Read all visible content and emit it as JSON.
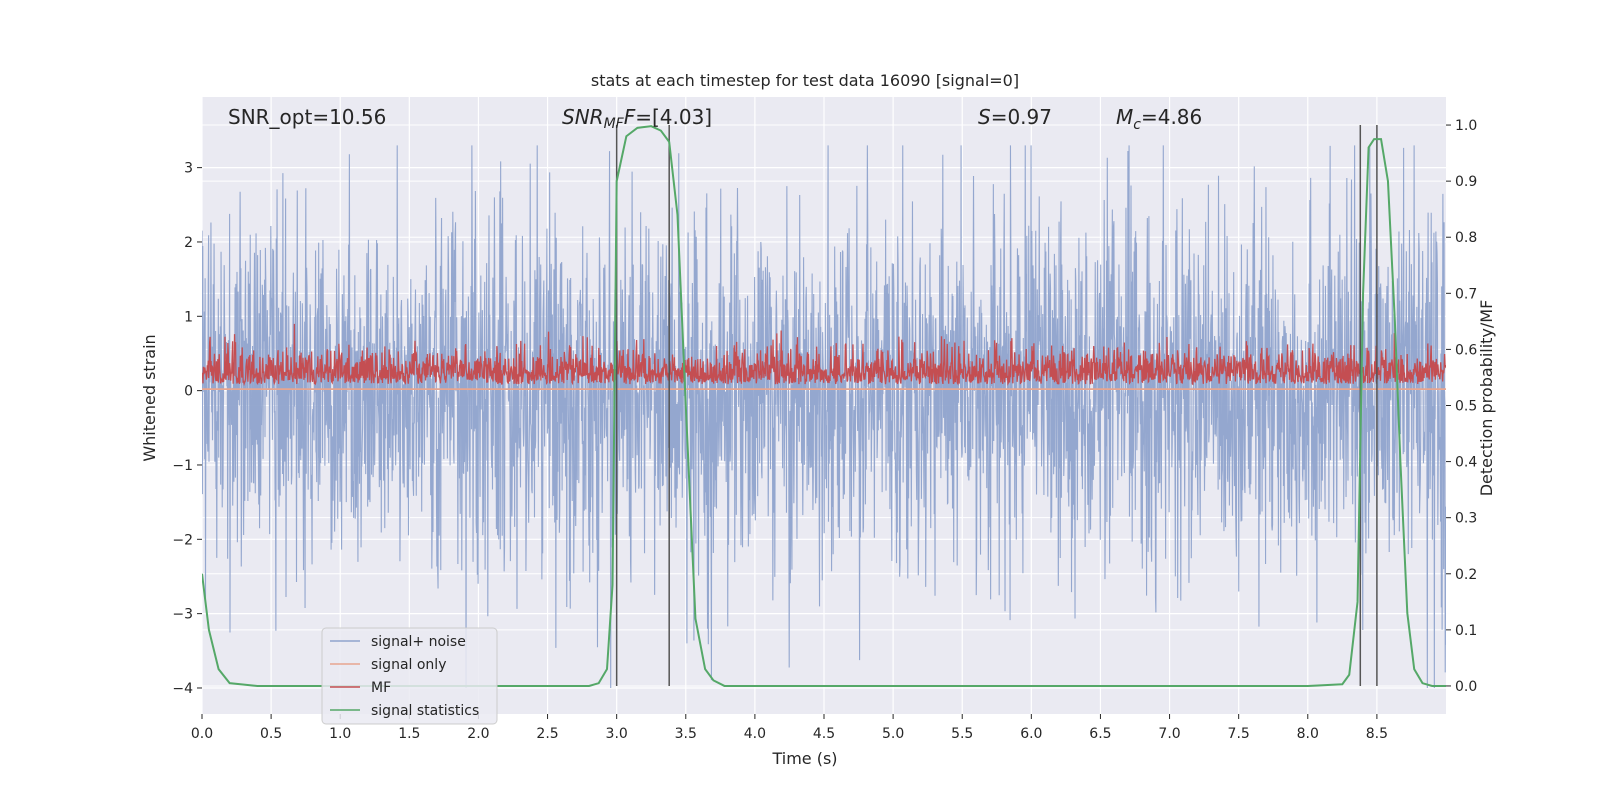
{
  "chart_data": {
    "type": "line",
    "title": "stats at each timestep for test data 16090 [signal=0]",
    "xlabel": "Time (s)",
    "ylabel": "Whitened strain",
    "ylabel_right": "Detection probability/MF",
    "xlim": [
      0.0,
      9.0
    ],
    "ylim": [
      -4.35,
      3.95
    ],
    "ylim_right": [
      -0.05,
      1.05
    ],
    "x_ticks": [
      0.0,
      0.5,
      1.0,
      1.5,
      2.0,
      2.5,
      3.0,
      3.5,
      4.0,
      4.5,
      5.0,
      5.5,
      6.0,
      6.5,
      7.0,
      7.5,
      8.0,
      8.5
    ],
    "x_tick_labels": [
      "0.0",
      "0.5",
      "1.0",
      "1.5",
      "2.0",
      "2.5",
      "3.0",
      "3.5",
      "4.0",
      "4.5",
      "5.0",
      "5.5",
      "6.0",
      "6.5",
      "7.0",
      "7.5",
      "8.0",
      "8.5"
    ],
    "y_ticks": [
      -4,
      -3,
      -2,
      -1,
      0,
      1,
      2,
      3
    ],
    "y_tick_labels": [
      "−4",
      "−3",
      "−2",
      "−1",
      "0",
      "1",
      "2",
      "3"
    ],
    "y_ticks_right": [
      0.0,
      0.1,
      0.2,
      0.3,
      0.4,
      0.5,
      0.6,
      0.7,
      0.8,
      0.9,
      1.0
    ],
    "y_tick_labels_right": [
      "0.0",
      "0.1",
      "0.2",
      "0.3",
      "0.4",
      "0.5",
      "0.6",
      "0.7",
      "0.8",
      "0.9",
      "1.0"
    ],
    "grid": true,
    "legend_position": "lower-left",
    "annotations": {
      "snr_opt": "SNR_opt=10.56",
      "snr_mf_main": "SNR",
      "snr_mf_sub": "MF",
      "snr_mf_rest": "=[4.03]",
      "s_main": "S",
      "s_rest": "=0.97",
      "mc_main": "M",
      "mc_sub": "c",
      "mc_rest": "=4.86"
    },
    "colors": {
      "background": "#eaeaf2",
      "grid": "#ffffff",
      "signal_noise": "#8fa3cc",
      "signal_only": "#e8a58f",
      "mf": "#c44e52",
      "signal_statistics": "#55a868",
      "vlines": "#555555"
    },
    "series": [
      {
        "name": "signal+ noise",
        "axis": "left",
        "kind": "noise",
        "t_range": [
          0.0,
          9.0
        ],
        "envelope_typical": [
          -1.5,
          1.5
        ],
        "envelope_extreme": [
          -4.0,
          3.3
        ]
      },
      {
        "name": "signal only",
        "axis": "left",
        "x": [
          0.0,
          9.0
        ],
        "values": [
          0.02,
          0.02
        ]
      },
      {
        "name": "MF",
        "axis": "right",
        "kind": "noise",
        "t_range": [
          0.0,
          9.0
        ],
        "range": [
          0.53,
          0.66
        ]
      },
      {
        "name": "signal statistics",
        "axis": "right",
        "x": [
          0.0,
          0.05,
          0.12,
          0.2,
          0.4,
          1.0,
          2.0,
          2.8,
          2.87,
          2.93,
          2.97,
          3.0,
          3.07,
          3.15,
          3.25,
          3.32,
          3.38,
          3.44,
          3.5,
          3.57,
          3.64,
          3.7,
          3.78,
          4.0,
          5.0,
          6.0,
          7.0,
          8.0,
          8.25,
          8.3,
          8.36,
          8.4,
          8.44,
          8.48,
          8.53,
          8.58,
          8.63,
          8.67,
          8.72,
          8.77,
          8.83,
          8.9,
          9.0
        ],
        "values": [
          0.2,
          0.1,
          0.03,
          0.005,
          0.0,
          0.0,
          0.0,
          0.0,
          0.005,
          0.03,
          0.18,
          0.9,
          0.98,
          0.995,
          0.998,
          0.99,
          0.97,
          0.84,
          0.5,
          0.12,
          0.03,
          0.01,
          0.0,
          0.0,
          0.0,
          0.0,
          0.0,
          0.0,
          0.003,
          0.02,
          0.15,
          0.7,
          0.96,
          0.975,
          0.975,
          0.9,
          0.65,
          0.4,
          0.13,
          0.03,
          0.005,
          0.0,
          0.0
        ]
      }
    ],
    "vertical_lines": [
      3.0,
      3.38,
      8.38,
      8.5
    ]
  }
}
